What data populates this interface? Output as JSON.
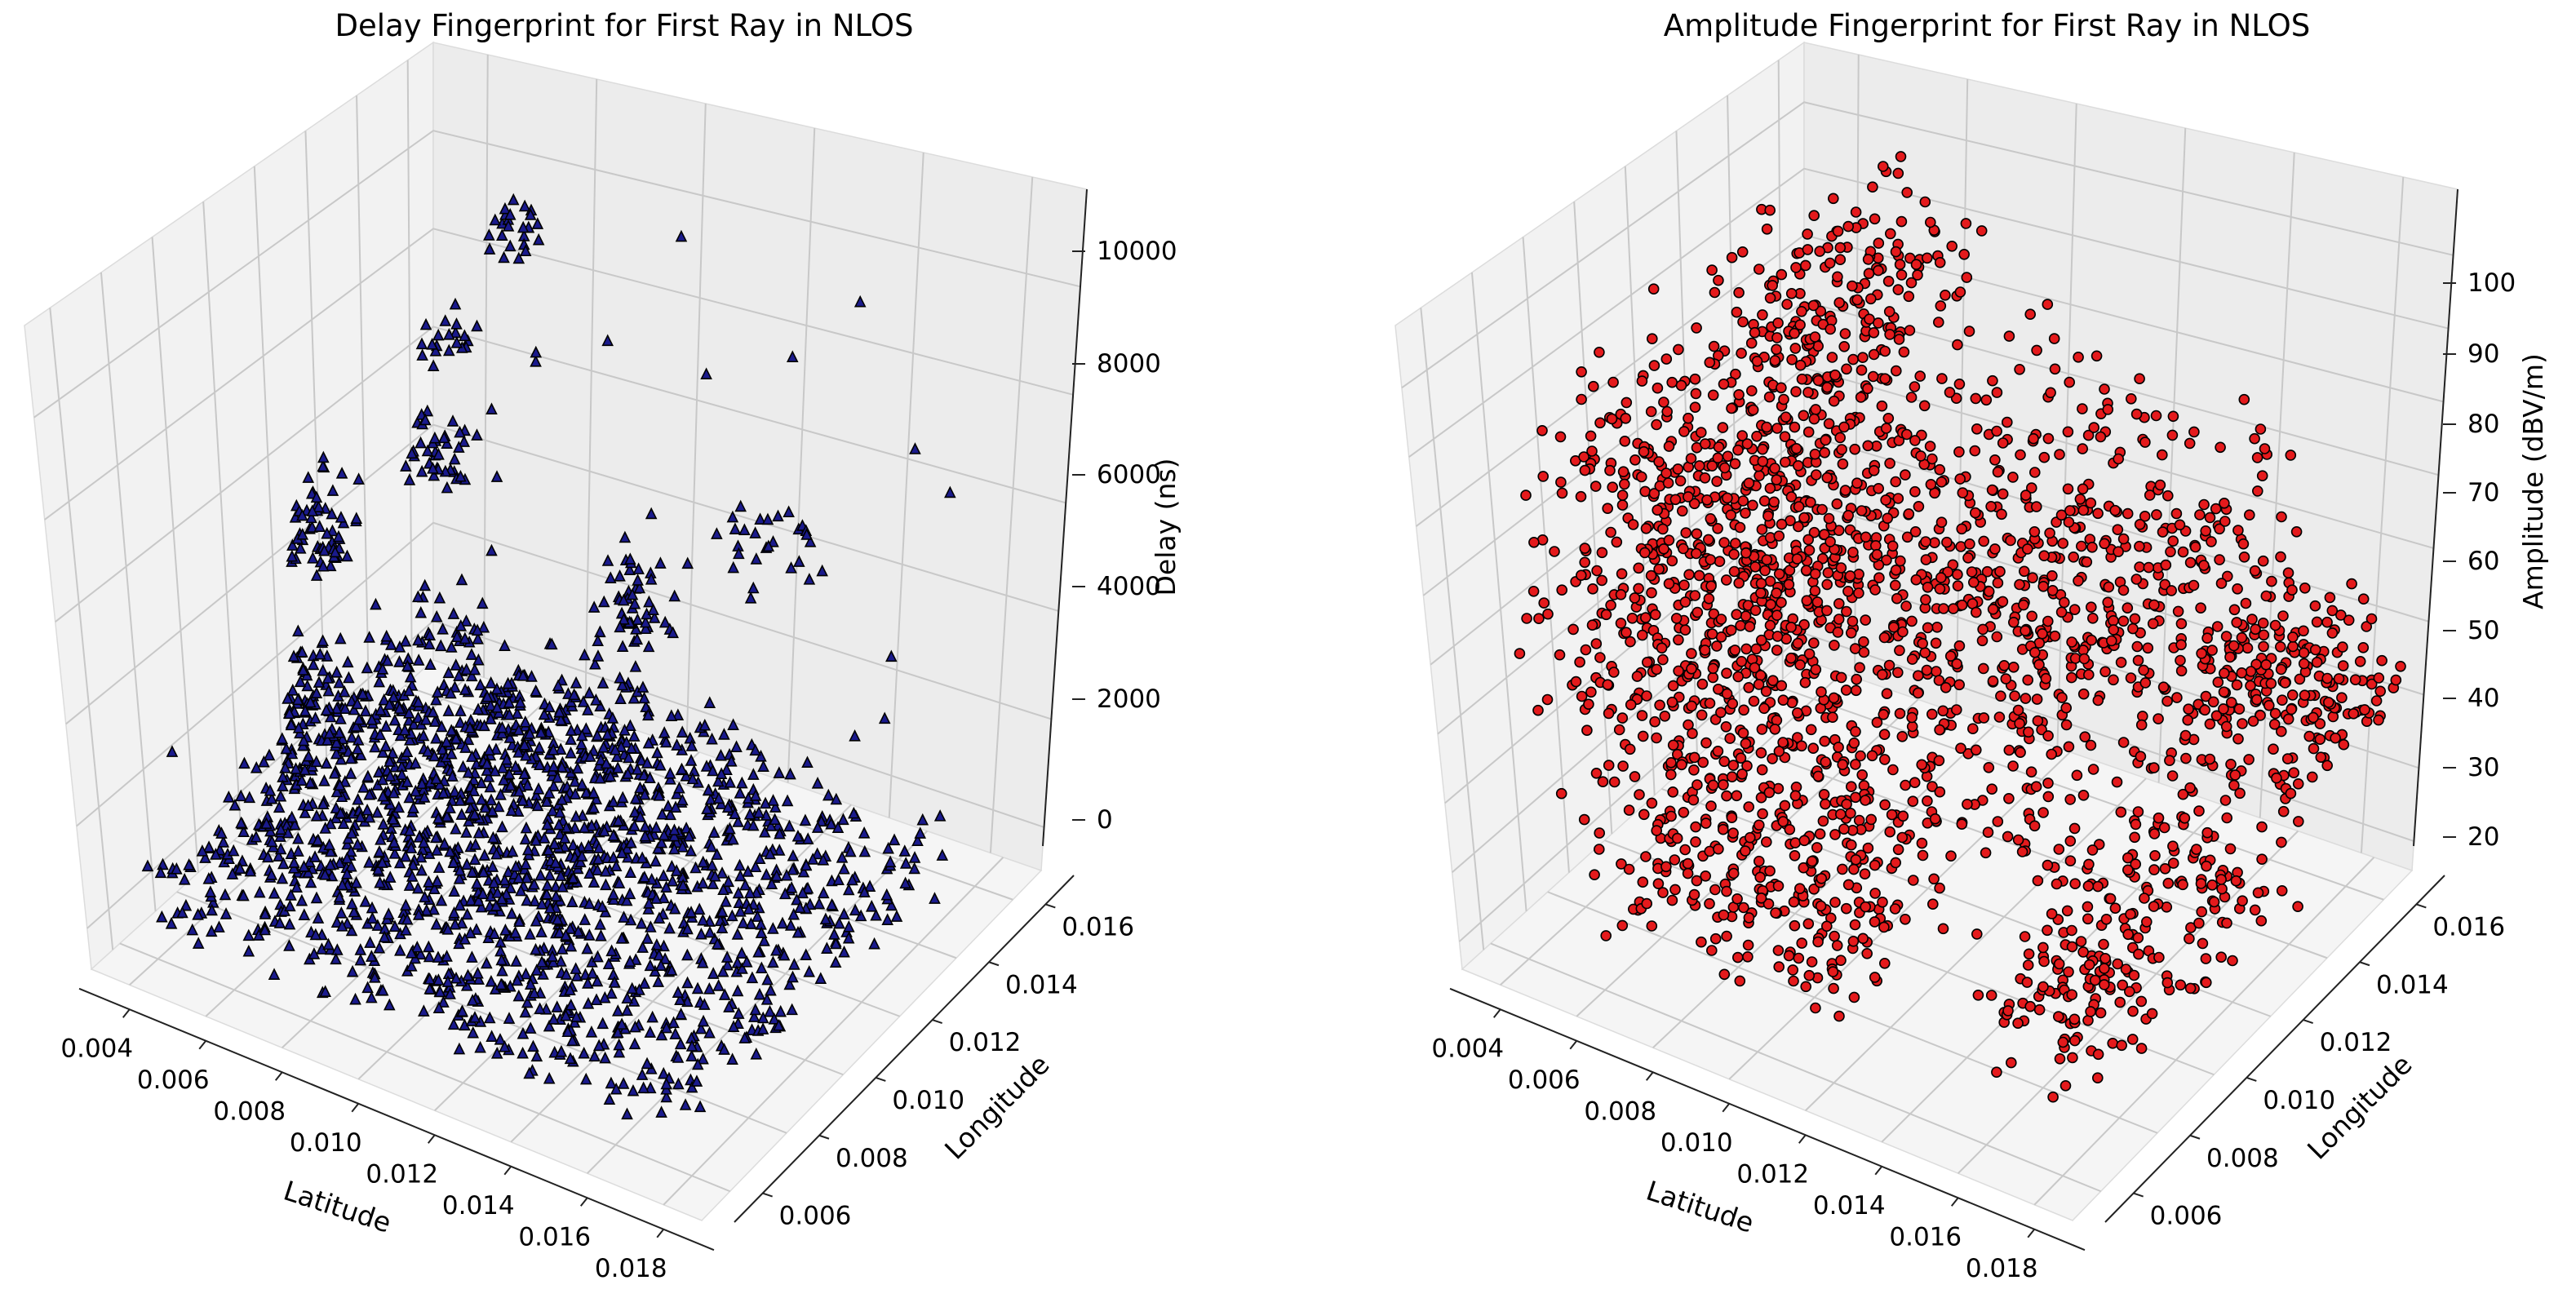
{
  "chart_data": [
    {
      "type": "scatter",
      "projection": "3d",
      "title": "Delay Fingerprint for First Ray in NLOS",
      "xlabel": "Latitude",
      "ylabel": "Longitude",
      "zlabel": "Delay (ns)",
      "xticks": [
        "0.004",
        "0.006",
        "0.008",
        "0.010",
        "0.012",
        "0.014",
        "0.016",
        "0.018"
      ],
      "yticks": [
        "0.006",
        "0.008",
        "0.010",
        "0.012",
        "0.014",
        "0.016"
      ],
      "zticks": [
        "0",
        "2000",
        "4000",
        "6000",
        "8000",
        "10000"
      ],
      "xlim": [
        0.0035,
        0.0185
      ],
      "ylim": [
        0.005,
        0.017
      ],
      "zlim": [
        -500,
        10500
      ],
      "marker": "triangle",
      "color": "#1a1a8c",
      "edgecolor": "#000000",
      "grid": true,
      "clusters": [
        {
          "x": [
            0.004,
            0.017
          ],
          "y": [
            0.006,
            0.016
          ],
          "z": [
            0,
            1200
          ],
          "n": 1400
        },
        {
          "x": [
            0.005,
            0.013
          ],
          "y": [
            0.008,
            0.015
          ],
          "z": [
            800,
            2500
          ],
          "n": 500
        },
        {
          "x": [
            0.0045,
            0.006
          ],
          "y": [
            0.01,
            0.011
          ],
          "z": [
            1800,
            3200
          ],
          "n": 60
        },
        {
          "x": [
            0.004,
            0.005
          ],
          "y": [
            0.011,
            0.0125
          ],
          "z": [
            3800,
            5200
          ],
          "n": 60
        },
        {
          "x": [
            0.006,
            0.0075
          ],
          "y": [
            0.012,
            0.013
          ],
          "z": [
            5500,
            6500
          ],
          "n": 40
        },
        {
          "x": [
            0.0095,
            0.011
          ],
          "y": [
            0.014,
            0.015
          ],
          "z": [
            2800,
            4500
          ],
          "n": 50
        },
        {
          "x": [
            0.0075,
            0.0085
          ],
          "y": [
            0.013,
            0.014
          ],
          "z": [
            9400,
            10000
          ],
          "n": 25
        },
        {
          "x": [
            0.0055,
            0.0065
          ],
          "y": [
            0.013,
            0.0145
          ],
          "z": [
            6800,
            7400
          ],
          "n": 20
        },
        {
          "x": [
            0.012,
            0.014
          ],
          "y": [
            0.015,
            0.016
          ],
          "z": [
            4200,
            5400
          ],
          "n": 25
        },
        {
          "x": [
            0.004,
            0.018
          ],
          "y": [
            0.006,
            0.017
          ],
          "z": [
            0,
            9000
          ],
          "n": 40
        }
      ]
    },
    {
      "type": "scatter",
      "projection": "3d",
      "title": "Amplitude Fingerprint for First Ray in NLOS",
      "xlabel": "Latitude",
      "ylabel": "Longitude",
      "zlabel": "Amplitude (dBV/m)",
      "xticks": [
        "0.004",
        "0.006",
        "0.008",
        "0.010",
        "0.012",
        "0.014",
        "0.016",
        "0.018"
      ],
      "yticks": [
        "0.006",
        "0.008",
        "0.010",
        "0.012",
        "0.014",
        "0.016"
      ],
      "zticks": [
        "20",
        "30",
        "40",
        "50",
        "60",
        "70",
        "80",
        "90",
        "100"
      ],
      "xlim": [
        0.0035,
        0.0185
      ],
      "ylim": [
        0.005,
        0.017
      ],
      "zlim": [
        18,
        110
      ],
      "marker": "circle",
      "color": "#e41a1c",
      "edgecolor": "#000000",
      "grid": true,
      "clusters": [
        {
          "x": [
            0.004,
            0.017
          ],
          "y": [
            0.006,
            0.016
          ],
          "z": [
            55,
            90
          ],
          "n": 1200
        },
        {
          "x": [
            0.004,
            0.008
          ],
          "y": [
            0.006,
            0.016
          ],
          "z": [
            40,
            100
          ],
          "n": 350
        },
        {
          "x": [
            0.006,
            0.012
          ],
          "y": [
            0.006,
            0.01
          ],
          "z": [
            25,
            55
          ],
          "n": 350
        },
        {
          "x": [
            0.015,
            0.018
          ],
          "y": [
            0.006,
            0.014
          ],
          "z": [
            28,
            48
          ],
          "n": 250
        },
        {
          "x": [
            0.015,
            0.0185
          ],
          "y": [
            0.013,
            0.017
          ],
          "z": [
            48,
            62
          ],
          "n": 200
        },
        {
          "x": [
            0.006,
            0.009
          ],
          "y": [
            0.012,
            0.016
          ],
          "z": [
            90,
            104
          ],
          "n": 80
        }
      ]
    }
  ]
}
